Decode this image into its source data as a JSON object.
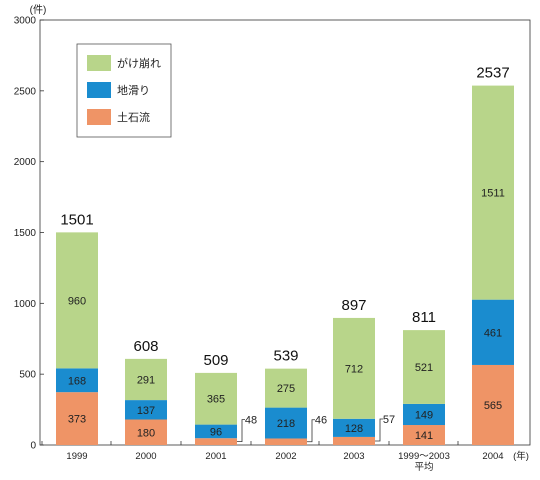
{
  "chart_data": {
    "type": "bar",
    "stacked": true,
    "y_unit_label": "(件)",
    "x_unit_label": "(年)",
    "ylim": [
      0,
      3000
    ],
    "y_ticks": [
      0,
      500,
      1000,
      1500,
      2000,
      2500,
      3000
    ],
    "categories": [
      "1999",
      "2000",
      "2001",
      "2002",
      "2003",
      "1999～2003\n平均",
      "2004"
    ],
    "series": [
      {
        "name": "土石流",
        "color": "#ef9466",
        "values": [
          373,
          180,
          48,
          46,
          57,
          141,
          565
        ]
      },
      {
        "name": "地滑り",
        "color": "#1a8ccf",
        "values": [
          168,
          137,
          96,
          218,
          128,
          149,
          461
        ]
      },
      {
        "name": "がけ崩れ",
        "color": "#b8d58a",
        "values": [
          960,
          291,
          365,
          275,
          712,
          521,
          1511
        ]
      }
    ],
    "totals": [
      1501,
      608,
      509,
      539,
      897,
      811,
      2537
    ],
    "external_label_categories": [
      "2001",
      "2002",
      "2003"
    ],
    "legend_position": "top-left",
    "grid": false
  }
}
